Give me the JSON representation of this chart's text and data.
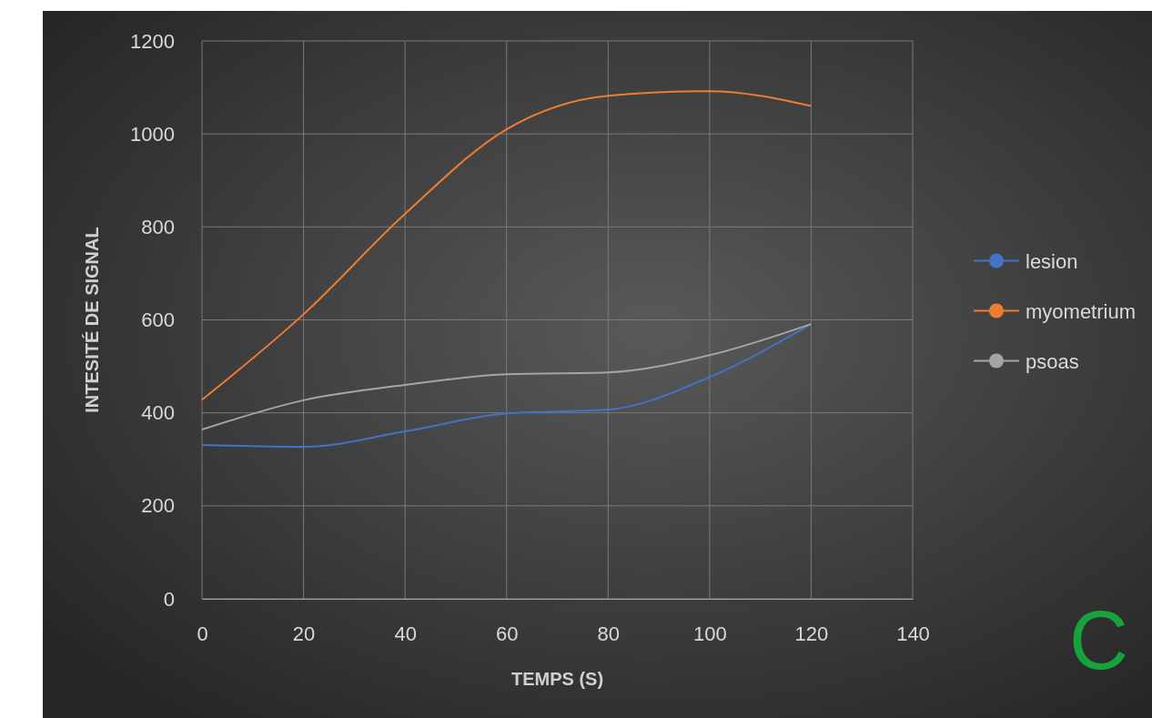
{
  "chart_data": {
    "type": "line",
    "xlabel": "TEMPS (S)",
    "ylabel": "INTESITÉ DE SIGNAL",
    "x": [
      0,
      20,
      40,
      60,
      80,
      100,
      120
    ],
    "series": [
      {
        "name": "lesion",
        "color": "#4472c4",
        "values": [
          331,
          327,
          360,
          399,
          407,
          477,
          591
        ]
      },
      {
        "name": "myometrium",
        "color": "#ed7d31",
        "values": [
          428,
          612,
          828,
          1010,
          1082,
          1092,
          1060
        ]
      },
      {
        "name": "psoas",
        "color": "#a5a5a5",
        "values": [
          364,
          427,
          460,
          483,
          487,
          524,
          591
        ]
      }
    ],
    "xlim": [
      0,
      140
    ],
    "xticks": [
      0,
      20,
      40,
      60,
      80,
      100,
      120,
      140
    ],
    "ylim": [
      0,
      1200
    ],
    "yticks": [
      0,
      200,
      400,
      600,
      800,
      1000,
      1200
    ],
    "grid": true,
    "legend": "right",
    "annotations": [
      "C"
    ]
  }
}
